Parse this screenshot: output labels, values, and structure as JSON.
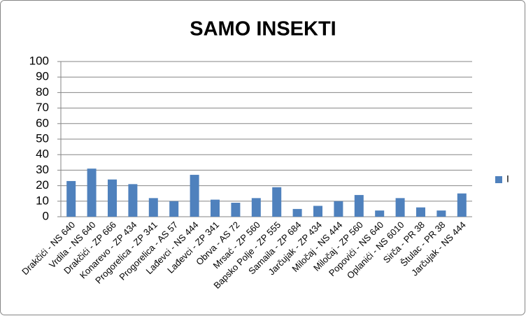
{
  "chart_data": {
    "type": "bar",
    "title": "SAMO INSEKTI",
    "categories": [
      "Drakčići - NS 640",
      "Vrdila - NS 640",
      "Drakčići - ZP 666",
      "Konarevo - ZP 434",
      "Progorelica - ZP 341",
      "Progorelica - AS 57",
      "Lađevci - NS 444",
      "Lađevci - ZP 341",
      "Obrva - AS 72",
      "Mrsać - ZP 560",
      "Bapsko Polje - ZP 555",
      "Samaila - ZP 684",
      "Jarčujak - ZP 434",
      "Miločaj - NS 444",
      "Miločaj - ZP 560",
      "Popovići - NS 640",
      "Oplanići - NS 6010",
      "Sirča - PR 38",
      "Štulac - PR 38",
      "Jarčujak - NS 444"
    ],
    "series": [
      {
        "name": "I",
        "color": "#4f81bd",
        "values": [
          23,
          31,
          24,
          21,
          12,
          10,
          27,
          11,
          9,
          12,
          19,
          5,
          7,
          10,
          14,
          4,
          12,
          6,
          4,
          15
        ]
      }
    ],
    "ylim": [
      0,
      100
    ],
    "yticks": [
      0,
      10,
      20,
      30,
      40,
      50,
      60,
      70,
      80,
      90,
      100
    ],
    "grid": true,
    "legend": "right"
  }
}
